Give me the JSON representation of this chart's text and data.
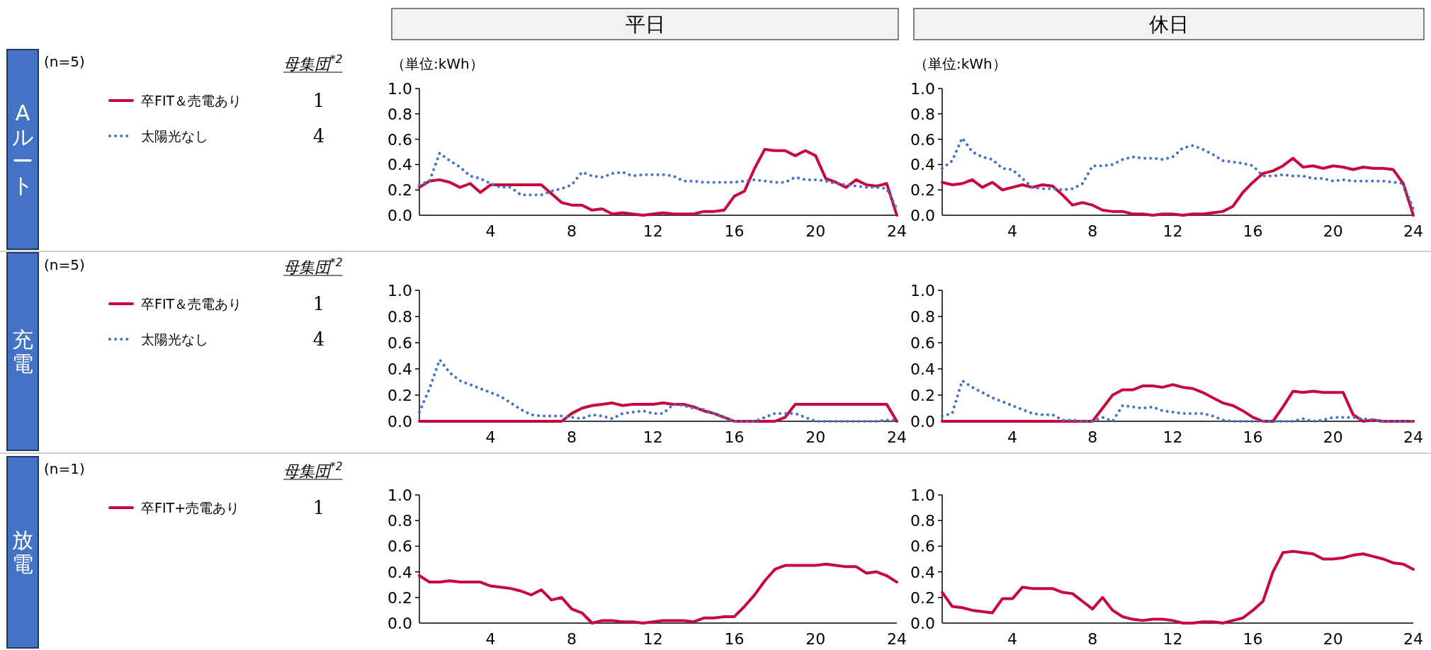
{
  "chart_data": [
    {
      "type": "line",
      "title": "平日",
      "legend": "left",
      "xlim": [
        0.5,
        24
      ],
      "ylim": [
        0,
        1
      ],
      "xticks": [
        4,
        8,
        12,
        16,
        20,
        24
      ],
      "yticks": [
        {
          "value": 0,
          "label": "0.0"
        },
        {
          "value": 0.2,
          "label": "0.2"
        },
        {
          "value": 0.4,
          "label": "0.4"
        },
        {
          "value": 0.6,
          "label": "0.6"
        },
        {
          "value": 0.8,
          "label": "0.8"
        },
        {
          "value": 1,
          "label": "1.0"
        }
      ],
      "x": [
        0.5,
        1,
        1.5,
        2,
        2.5,
        3,
        3.5,
        4,
        4.5,
        5,
        5.5,
        6,
        6.5,
        7,
        7.5,
        8,
        8.5,
        9,
        9.5,
        10,
        10.5,
        11,
        11.5,
        12,
        12.5,
        13,
        13.5,
        14,
        14.5,
        15,
        15.5,
        16,
        16.5,
        17,
        17.5,
        18,
        18.5,
        19,
        19.5,
        20,
        20.5,
        21,
        21.5,
        22,
        22.5,
        23,
        23.5,
        24
      ],
      "annotations": [
        "Aルート",
        "(n=5)",
        "母集団$^{*2}$",
        "1",
        "4",
        "（単位:kWh）"
      ],
      "series": [
        {
          "name": "卒FIT＆売電あり",
          "color": "#c8073f",
          "line_style": "solid",
          "values": [
            0.22,
            0.27,
            0.28,
            0.26,
            0.22,
            0.25,
            0.18,
            0.24,
            0.24,
            0.24,
            0.24,
            0.24,
            0.24,
            0.17,
            0.1,
            0.08,
            0.08,
            0.04,
            0.05,
            0.01,
            0.02,
            0.01,
            0,
            0.01,
            0.02,
            0.01,
            0.01,
            0.01,
            0.03,
            0.03,
            0.04,
            0.15,
            0.19,
            0.37,
            0.52,
            0.51,
            0.51,
            0.47,
            0.51,
            0.47,
            0.29,
            0.26,
            0.22,
            0.28,
            0.24,
            0.23,
            0.25,
            0
          ]
        },
        {
          "name": "太陽光なし",
          "color": "#4472c4",
          "line_style": "dotted",
          "values": [
            0.24,
            0.27,
            0.49,
            0.43,
            0.38,
            0.31,
            0.29,
            0.25,
            0.22,
            0.22,
            0.16,
            0.16,
            0.16,
            0.19,
            0.21,
            0.24,
            0.34,
            0.31,
            0.3,
            0.33,
            0.34,
            0.31,
            0.32,
            0.32,
            0.32,
            0.31,
            0.27,
            0.27,
            0.26,
            0.26,
            0.26,
            0.26,
            0.27,
            0.28,
            0.27,
            0.26,
            0.26,
            0.3,
            0.28,
            0.28,
            0.27,
            0.25,
            0.24,
            0.23,
            0.22,
            0.22,
            0.21,
            0.05
          ]
        }
      ]
    },
    {
      "type": "line",
      "title": "休日",
      "xlim": [
        0.5,
        24
      ],
      "ylim": [
        0,
        1
      ],
      "xticks": [
        4,
        8,
        12,
        16,
        20,
        24
      ],
      "yticks": [
        {
          "value": 0,
          "label": "0.0"
        },
        {
          "value": 0.2,
          "label": "0.2"
        },
        {
          "value": 0.4,
          "label": "0.4"
        },
        {
          "value": 0.6,
          "label": "0.6"
        },
        {
          "value": 0.8,
          "label": "0.8"
        },
        {
          "value": 1,
          "label": "1.0"
        }
      ],
      "x": [
        0.5,
        1,
        1.5,
        2,
        2.5,
        3,
        3.5,
        4,
        4.5,
        5,
        5.5,
        6,
        6.5,
        7,
        7.5,
        8,
        8.5,
        9,
        9.5,
        10,
        10.5,
        11,
        11.5,
        12,
        12.5,
        13,
        13.5,
        14,
        14.5,
        15,
        15.5,
        16,
        16.5,
        17,
        17.5,
        18,
        18.5,
        19,
        19.5,
        20,
        20.5,
        21,
        21.5,
        22,
        22.5,
        23,
        23.5,
        24
      ],
      "annotations": [
        "（単位:kWh）"
      ],
      "series": [
        {
          "color": "#c8073f",
          "line_style": "solid",
          "values": [
            0.26,
            0.24,
            0.25,
            0.28,
            0.22,
            0.26,
            0.2,
            0.22,
            0.24,
            0.22,
            0.24,
            0.23,
            0.16,
            0.08,
            0.1,
            0.08,
            0.04,
            0.03,
            0.03,
            0.01,
            0.01,
            0,
            0.01,
            0.01,
            0,
            0.01,
            0.01,
            0.02,
            0.03,
            0.07,
            0.18,
            0.26,
            0.33,
            0.35,
            0.39,
            0.45,
            0.38,
            0.39,
            0.37,
            0.39,
            0.38,
            0.36,
            0.38,
            0.37,
            0.37,
            0.36,
            0.25,
            0
          ]
        },
        {
          "color": "#4472c4",
          "line_style": "dotted",
          "values": [
            0.37,
            0.43,
            0.61,
            0.5,
            0.46,
            0.44,
            0.37,
            0.36,
            0.29,
            0.22,
            0.21,
            0.21,
            0.2,
            0.21,
            0.25,
            0.39,
            0.39,
            0.4,
            0.44,
            0.46,
            0.45,
            0.45,
            0.44,
            0.46,
            0.53,
            0.55,
            0.52,
            0.48,
            0.43,
            0.42,
            0.41,
            0.39,
            0.31,
            0.31,
            0.32,
            0.31,
            0.31,
            0.29,
            0.29,
            0.27,
            0.28,
            0.27,
            0.27,
            0.27,
            0.27,
            0.26,
            0.25,
            0.05
          ]
        }
      ]
    },
    {
      "type": "line",
      "legend": "left",
      "xlim": [
        0.5,
        24
      ],
      "ylim": [
        0,
        1
      ],
      "xticks": [
        4,
        8,
        12,
        16,
        20,
        24
      ],
      "yticks": [
        {
          "value": 0,
          "label": "0.0"
        },
        {
          "value": 0.2,
          "label": "0.2"
        },
        {
          "value": 0.4,
          "label": "0.4"
        },
        {
          "value": 0.6,
          "label": "0.6"
        },
        {
          "value": 0.8,
          "label": "0.8"
        },
        {
          "value": 1,
          "label": "1.0"
        }
      ],
      "x": [
        0.5,
        1,
        1.5,
        2,
        2.5,
        3,
        3.5,
        4,
        4.5,
        5,
        5.5,
        6,
        6.5,
        7,
        7.5,
        8,
        8.5,
        9,
        9.5,
        10,
        10.5,
        11,
        11.5,
        12,
        12.5,
        13,
        13.5,
        14,
        14.5,
        15,
        15.5,
        16,
        16.5,
        17,
        17.5,
        18,
        18.5,
        19,
        19.5,
        20,
        20.5,
        21,
        21.5,
        22,
        22.5,
        23,
        23.5,
        24
      ],
      "annotations": [
        "充電",
        "(n=5)",
        "母集団$^{*2}$",
        "1",
        "4"
      ],
      "series": [
        {
          "name": "卒FIT＆売電あり",
          "color": "#c8073f",
          "line_style": "solid",
          "values": [
            0,
            0,
            0,
            0,
            0,
            0,
            0,
            0,
            0,
            0,
            0,
            0,
            0,
            0,
            0,
            0.06,
            0.1,
            0.12,
            0.13,
            0.14,
            0.12,
            0.13,
            0.13,
            0.13,
            0.14,
            0.13,
            0.13,
            0.11,
            0.08,
            0.06,
            0.03,
            0,
            0,
            0,
            0,
            0,
            0.03,
            0.13,
            0.13,
            0.13,
            0.13,
            0.13,
            0.13,
            0.13,
            0.13,
            0.13,
            0.13,
            0
          ]
        },
        {
          "name": "太陽光なし",
          "color": "#4472c4",
          "line_style": "dotted",
          "values": [
            0.07,
            0.25,
            0.47,
            0.37,
            0.31,
            0.28,
            0.25,
            0.22,
            0.19,
            0.14,
            0.09,
            0.05,
            0.04,
            0.04,
            0.04,
            0.03,
            0.02,
            0.05,
            0.04,
            0.02,
            0.06,
            0.07,
            0.08,
            0.06,
            0.06,
            0.13,
            0.12,
            0.1,
            0.09,
            0.06,
            0.03,
            0,
            0,
            0,
            0.03,
            0.06,
            0.06,
            0.06,
            0.03,
            0,
            0,
            0,
            0,
            0,
            0,
            0,
            0.01,
            0.01
          ]
        }
      ]
    },
    {
      "type": "line",
      "xlim": [
        0.5,
        24
      ],
      "ylim": [
        0,
        1
      ],
      "xticks": [
        4,
        8,
        12,
        16,
        20,
        24
      ],
      "yticks": [
        {
          "value": 0,
          "label": "0.0"
        },
        {
          "value": 0.2,
          "label": "0.2"
        },
        {
          "value": 0.4,
          "label": "0.4"
        },
        {
          "value": 0.6,
          "label": "0.6"
        },
        {
          "value": 0.8,
          "label": "0.8"
        },
        {
          "value": 1,
          "label": "1.0"
        }
      ],
      "x": [
        0.5,
        1,
        1.5,
        2,
        2.5,
        3,
        3.5,
        4,
        4.5,
        5,
        5.5,
        6,
        6.5,
        7,
        7.5,
        8,
        8.5,
        9,
        9.5,
        10,
        10.5,
        11,
        11.5,
        12,
        12.5,
        13,
        13.5,
        14,
        14.5,
        15,
        15.5,
        16,
        16.5,
        17,
        17.5,
        18,
        18.5,
        19,
        19.5,
        20,
        20.5,
        21,
        21.5,
        22,
        22.5,
        23,
        23.5,
        24
      ],
      "series": [
        {
          "color": "#c8073f",
          "line_style": "solid",
          "values": [
            0,
            0,
            0,
            0,
            0,
            0,
            0,
            0,
            0,
            0,
            0,
            0,
            0,
            0,
            0,
            0,
            0.1,
            0.2,
            0.24,
            0.24,
            0.27,
            0.27,
            0.26,
            0.28,
            0.26,
            0.25,
            0.22,
            0.18,
            0.14,
            0.12,
            0.08,
            0.03,
            0,
            0,
            0.11,
            0.23,
            0.22,
            0.23,
            0.22,
            0.22,
            0.22,
            0.05,
            0,
            0.01,
            0,
            0,
            0,
            0
          ]
        },
        {
          "color": "#4472c4",
          "line_style": "dotted",
          "values": [
            0.04,
            0.06,
            0.31,
            0.26,
            0.22,
            0.18,
            0.15,
            0.12,
            0.09,
            0.06,
            0.05,
            0.05,
            0.01,
            0.01,
            0,
            0,
            0.03,
            0,
            0.12,
            0.11,
            0.1,
            0.11,
            0.08,
            0.07,
            0.06,
            0.06,
            0.06,
            0.04,
            0.01,
            0,
            0,
            0,
            0,
            0,
            0,
            0,
            0.02,
            0,
            0.01,
            0.03,
            0.03,
            0.03,
            0.02,
            0.01,
            0,
            0,
            0,
            0
          ]
        }
      ]
    },
    {
      "type": "line",
      "legend": "left",
      "xlim": [
        0.5,
        24
      ],
      "ylim": [
        0,
        1
      ],
      "xticks": [
        4,
        8,
        12,
        16,
        20,
        24
      ],
      "yticks": [
        {
          "value": 0,
          "label": "0.0"
        },
        {
          "value": 0.2,
          "label": "0.2"
        },
        {
          "value": 0.4,
          "label": "0.4"
        },
        {
          "value": 0.6,
          "label": "0.6"
        },
        {
          "value": 0.8,
          "label": "0.8"
        },
        {
          "value": 1,
          "label": "1.0"
        }
      ],
      "x": [
        0.5,
        1,
        1.5,
        2,
        2.5,
        3,
        3.5,
        4,
        4.5,
        5,
        5.5,
        6,
        6.5,
        7,
        7.5,
        8,
        8.5,
        9,
        9.5,
        10,
        10.5,
        11,
        11.5,
        12,
        12.5,
        13,
        13.5,
        14,
        14.5,
        15,
        15.5,
        16,
        16.5,
        17,
        17.5,
        18,
        18.5,
        19,
        19.5,
        20,
        20.5,
        21,
        21.5,
        22,
        22.5,
        23,
        23.5,
        24
      ],
      "annotations": [
        "放電",
        "(n=1)",
        "母集団$^{*2}$",
        "1"
      ],
      "series": [
        {
          "name": "卒FIT+売電あり",
          "color": "#c8073f",
          "line_style": "solid",
          "values": [
            0.37,
            0.32,
            0.32,
            0.33,
            0.32,
            0.32,
            0.32,
            0.29,
            0.28,
            0.27,
            0.25,
            0.22,
            0.26,
            0.18,
            0.2,
            0.11,
            0.08,
            0,
            0.02,
            0.02,
            0.01,
            0.01,
            0,
            0.01,
            0.02,
            0.02,
            0.02,
            0.01,
            0.04,
            0.04,
            0.05,
            0.05,
            0.13,
            0.22,
            0.33,
            0.42,
            0.45,
            0.45,
            0.45,
            0.45,
            0.46,
            0.45,
            0.44,
            0.44,
            0.39,
            0.4,
            0.37,
            0.32
          ]
        }
      ]
    },
    {
      "type": "line",
      "xlim": [
        0.5,
        24
      ],
      "ylim": [
        0,
        1
      ],
      "xticks": [
        4,
        8,
        12,
        16,
        20,
        24
      ],
      "yticks": [
        {
          "value": 0,
          "label": "0.0"
        },
        {
          "value": 0.2,
          "label": "0.2"
        },
        {
          "value": 0.4,
          "label": "0.4"
        },
        {
          "value": 0.6,
          "label": "0.6"
        },
        {
          "value": 0.8,
          "label": "0.8"
        },
        {
          "value": 1,
          "label": "1.0"
        }
      ],
      "x": [
        0.5,
        1,
        1.5,
        2,
        2.5,
        3,
        3.5,
        4,
        4.5,
        5,
        5.5,
        6,
        6.5,
        7,
        7.5,
        8,
        8.5,
        9,
        9.5,
        10,
        10.5,
        11,
        11.5,
        12,
        12.5,
        13,
        13.5,
        14,
        14.5,
        15,
        15.5,
        16,
        16.5,
        17,
        17.5,
        18,
        18.5,
        19,
        19.5,
        20,
        20.5,
        21,
        21.5,
        22,
        22.5,
        23,
        23.5,
        24
      ],
      "series": [
        {
          "color": "#c8073f",
          "line_style": "solid",
          "values": [
            0.24,
            0.13,
            0.12,
            0.1,
            0.09,
            0.08,
            0.19,
            0.19,
            0.28,
            0.27,
            0.27,
            0.27,
            0.24,
            0.23,
            0.17,
            0.11,
            0.2,
            0.1,
            0.05,
            0.03,
            0.02,
            0.03,
            0.03,
            0.02,
            0,
            0,
            0.01,
            0.01,
            0,
            0.02,
            0.04,
            0.1,
            0.17,
            0.4,
            0.55,
            0.56,
            0.55,
            0.54,
            0.5,
            0.5,
            0.51,
            0.53,
            0.54,
            0.52,
            0.5,
            0.47,
            0.46,
            0.42
          ]
        }
      ]
    }
  ]
}
